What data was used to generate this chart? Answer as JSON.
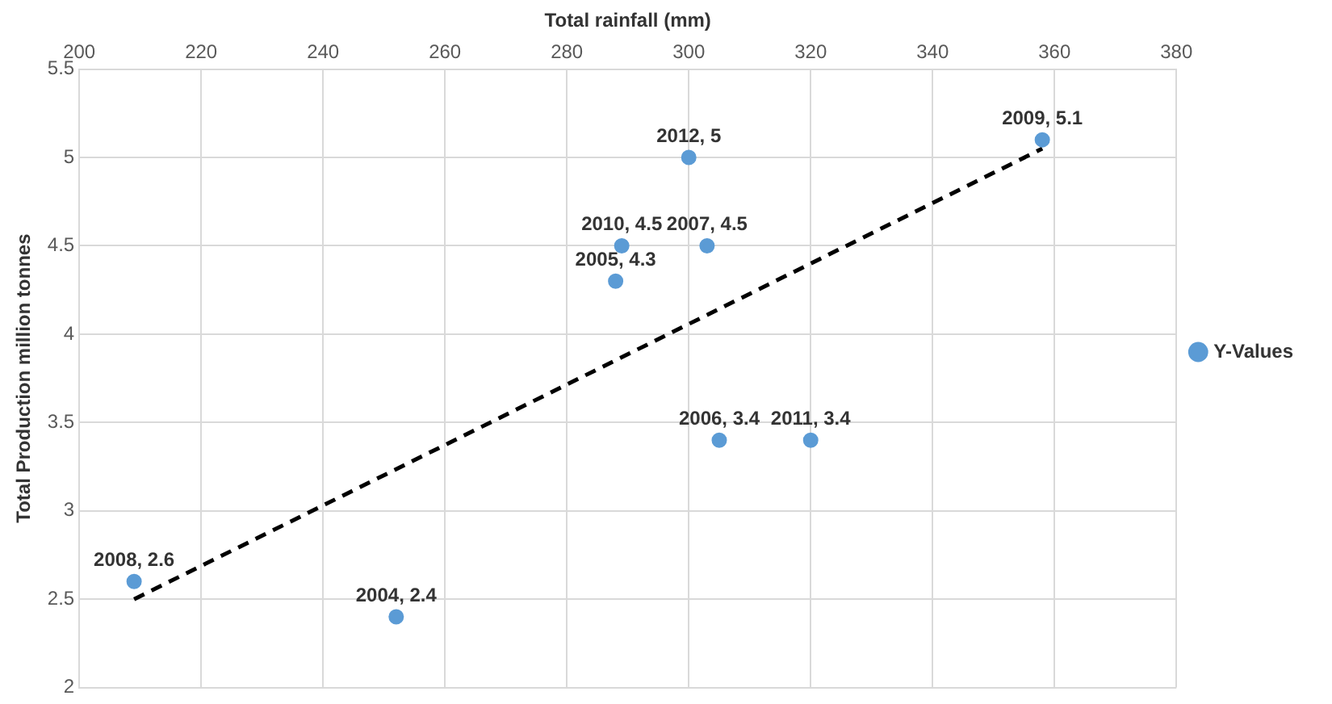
{
  "chart_data": {
    "type": "scatter",
    "xlabel": "Total rainfall (mm)",
    "ylabel": "Total Production million tonnes",
    "xlim": [
      200,
      380
    ],
    "xticks": [
      200,
      220,
      240,
      260,
      280,
      300,
      320,
      340,
      360,
      380
    ],
    "ylim": [
      2,
      5.5
    ],
    "yticks": [
      2,
      2.5,
      3,
      3.5,
      4,
      4.5,
      5,
      5.5
    ],
    "grid": true,
    "legend": "right",
    "marker": "circle",
    "series": [
      {
        "name": "Y-Values",
        "type": "scatter",
        "color": "#5b9bd5",
        "x": [
          209,
          252,
          288,
          289,
          300,
          303,
          305,
          320,
          358
        ],
        "values": [
          2.6,
          2.4,
          4.3,
          4.5,
          5,
          4.5,
          3.4,
          3.4,
          5.1
        ],
        "value_labels": [
          "2008, 2.6",
          "2004, 2.4",
          "2005, 4.3",
          "2010, 4.5",
          "2012, 5",
          "2007, 4.5",
          "2006, 3.4",
          "2011, 3.4",
          "2009, 5.1"
        ]
      },
      {
        "type": "line",
        "color": "#000000",
        "line_style": "dashed",
        "marker": "none",
        "x": [
          209,
          358
        ],
        "values": [
          2.5,
          5.05
        ]
      }
    ]
  }
}
